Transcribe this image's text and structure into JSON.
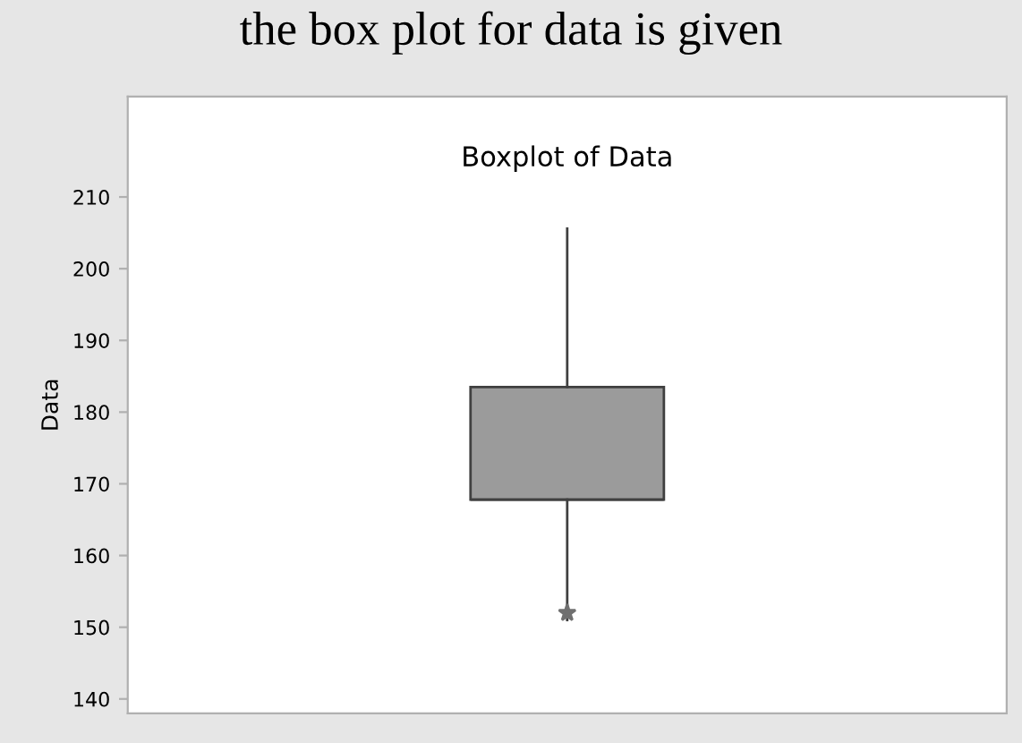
{
  "chart_data": {
    "type": "box",
    "title": "the box plot for data is given",
    "subtitle": "Boxplot of Data",
    "ylabel": "Data",
    "categories": [
      null
    ],
    "series": [
      {
        "color": "#9b9b9b",
        "boxes": [
          {
            "low": 151,
            "q1": 167.8,
            "median": 167.8,
            "q3": 183.5,
            "high": 205.6,
            "outliers": [
              152
            ]
          }
        ]
      }
    ],
    "ylim": [
      138,
      224
    ],
    "yticks": [
      140,
      150,
      160,
      170,
      180,
      190,
      200,
      210
    ],
    "grid": false,
    "marker": "star"
  }
}
